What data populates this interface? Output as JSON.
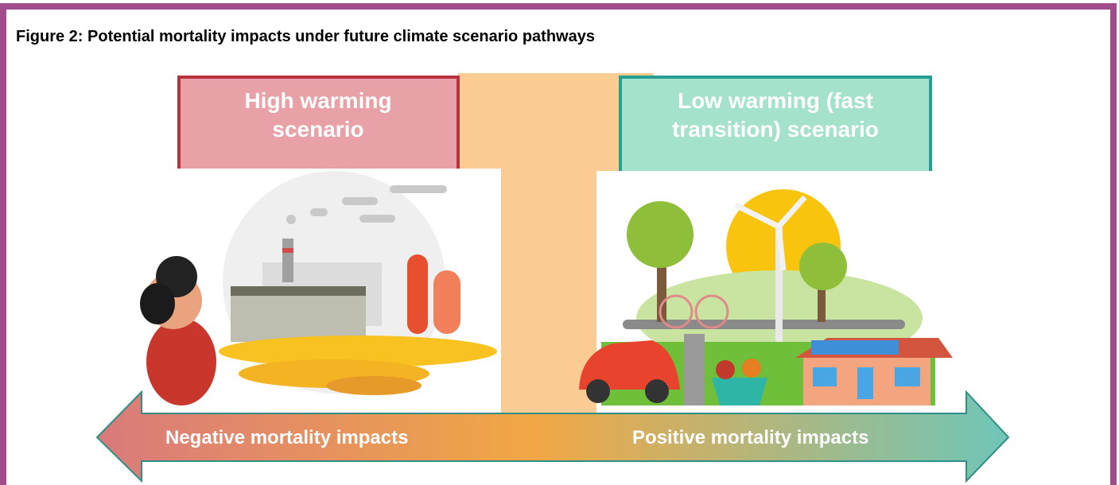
{
  "figure": {
    "title": "Figure 2: Potential mortality impacts under future climate scenario pathways"
  },
  "scenarios": [
    {
      "title_lines": [
        "High warming",
        "scenario"
      ]
    },
    {
      "title_lines": [
        "Low warming (fast",
        "transition) scenario"
      ]
    }
  ],
  "arrow": {
    "left_label": "Negative mortality impacts",
    "right_label": "Positive mortality impacts"
  }
}
